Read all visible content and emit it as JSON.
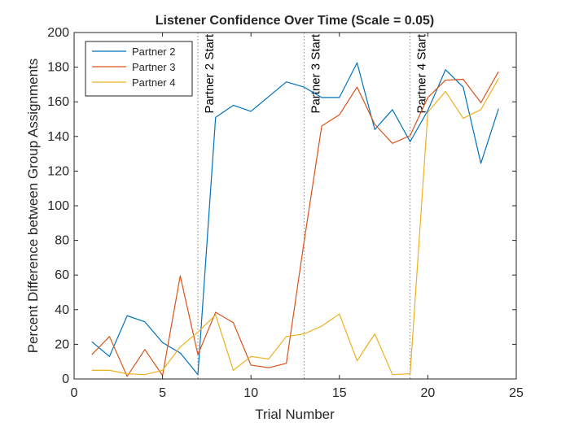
{
  "chart_data": {
    "type": "line",
    "title": "Listener Confidence Over Time (Scale = 0.05)",
    "xlabel": "Trial Number",
    "ylabel": "Percent Difference between Group Assignments",
    "xlim": [
      0,
      25
    ],
    "ylim": [
      0,
      200
    ],
    "xticks": [
      0,
      5,
      10,
      15,
      20,
      25
    ],
    "yticks": [
      0,
      20,
      40,
      60,
      80,
      100,
      120,
      140,
      160,
      180,
      200
    ],
    "grid": false,
    "legend_position": "top-left",
    "x": [
      1,
      2,
      3,
      4,
      5,
      6,
      7,
      8,
      9,
      10,
      11,
      12,
      13,
      14,
      15,
      16,
      17,
      18,
      19,
      20,
      21,
      22,
      23,
      24
    ],
    "series": [
      {
        "name": "Partner 2",
        "color": "#0072BD",
        "values": [
          21.5,
          13,
          36.5,
          33,
          21,
          15,
          2.5,
          151,
          158,
          154.5,
          163,
          171.5,
          168.5,
          162.5,
          162.5,
          182.5,
          144,
          155.5,
          137,
          155,
          178.5,
          168.5,
          124.5,
          156
        ]
      },
      {
        "name": "Partner 3",
        "color": "#D95319",
        "values": [
          14,
          24.5,
          1.5,
          17,
          2,
          59.5,
          14,
          38.5,
          32.5,
          8,
          6.5,
          9,
          79,
          146,
          152.5,
          168.5,
          147,
          136,
          140.5,
          162.5,
          172.5,
          173,
          159.5,
          177.5
        ]
      },
      {
        "name": "Partner 4",
        "color": "#EDB120",
        "values": [
          5,
          5,
          3,
          2.5,
          5,
          18.5,
          27,
          37,
          5,
          13,
          11.5,
          24.5,
          26,
          30.5,
          37.5,
          10.5,
          26,
          2.5,
          3,
          154,
          166,
          150.5,
          155.5,
          173.5
        ]
      }
    ],
    "vlines": [
      {
        "x": 7,
        "label": "Partner 2 Start"
      },
      {
        "x": 13,
        "label": "Partner 3 Start"
      },
      {
        "x": 19,
        "label": "Partner 4 Start"
      }
    ]
  }
}
